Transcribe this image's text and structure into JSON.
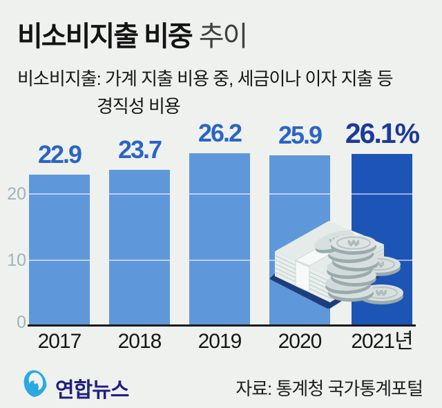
{
  "title": {
    "main": "비소비지출 비중",
    "suffix": "추이"
  },
  "subtitle": {
    "line1": "비소비지출: 가계 지출 비용 중, 세금이나 이자 지출 등",
    "line2": "경직성 비용"
  },
  "chart_data": {
    "type": "bar",
    "title": "비소비지출 비중 추이",
    "categories": [
      "2017",
      "2018",
      "2019",
      "2020",
      "2021년"
    ],
    "values": [
      22.9,
      23.7,
      26.2,
      25.9,
      26.1
    ],
    "value_labels": [
      "22.9",
      "23.7",
      "26.2",
      "25.9",
      "26.1%"
    ],
    "unit": "%",
    "ylim": [
      0,
      30
    ],
    "yticks": [
      0,
      10,
      20
    ],
    "grid": true,
    "legend": "none",
    "highlight_index": 4,
    "colors": {
      "bar": "#5f97db",
      "highlight_bar": "#1d55b6",
      "value_label": "#2a65c6",
      "highlight_value_label": "#1b3a9b",
      "ytick_label": "#9fb4ba",
      "xtick_label": "#161616",
      "baseline": "#1a1a1a",
      "background": "#eff1ef"
    }
  },
  "icons": {
    "money_illustration": "banknote-stack-won-coins-illustration",
    "brand_logo": "yonhap-news-logo",
    "won_symbol": "₩"
  },
  "footer": {
    "brand": "연합뉴스",
    "source": "자료: 통계청 국가통계포털"
  }
}
